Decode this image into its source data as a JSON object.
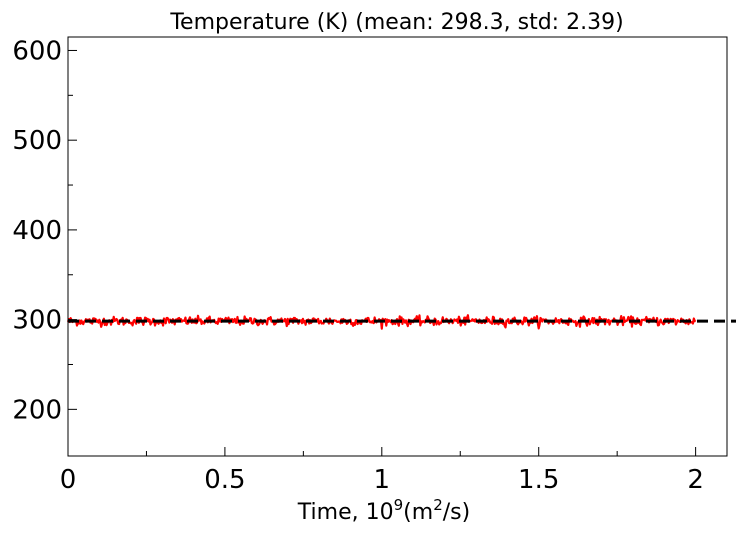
{
  "chart_data": {
    "type": "line",
    "title": "Temperature (K) (mean: 298.3, std: 2.39)",
    "xlabel": "Time, 10",
    "xlabel_superscript": "9",
    "xlabel_unit_prefix": "(m",
    "xlabel_unit_superscript": "2",
    "xlabel_unit_suffix": "/s)",
    "ylabel": "",
    "xlim": [
      0,
      2.1
    ],
    "ylim": [
      148,
      615
    ],
    "x_ticks": [
      0,
      0.5,
      1,
      1.5,
      2
    ],
    "x_tick_labels": [
      "0",
      "0.5",
      "1",
      "1.5",
      "2"
    ],
    "y_ticks": [
      200,
      300,
      400,
      500,
      600
    ],
    "y_tick_labels": [
      "200",
      "300",
      "400",
      "500",
      "600"
    ],
    "grid": false,
    "series": [
      {
        "color": "#ff0000",
        "x_range": [
          0,
          2
        ],
        "mean": 298.3,
        "std": 2.39,
        "style": "solid"
      }
    ],
    "reference_line": {
      "y": 298.3,
      "color": "#000000",
      "style": "dashed"
    }
  }
}
